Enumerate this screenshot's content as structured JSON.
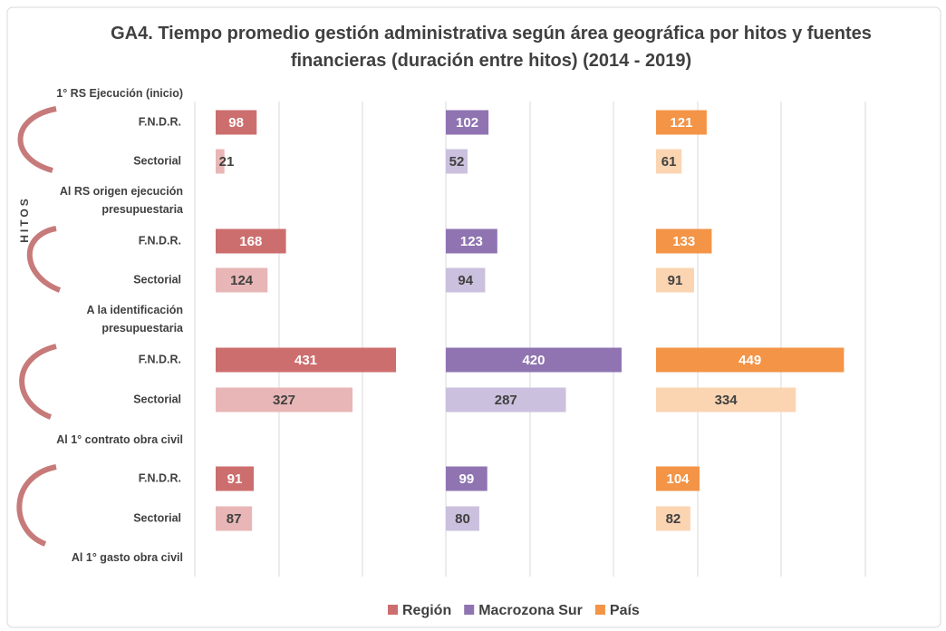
{
  "chart_data": {
    "type": "bar",
    "orientation": "horizontal",
    "title": "GA4. Tiempo promedio gestión administrativa según área geográfica por hitos y fuentes financieras  (duración entre hitos) (2014 - 2019)",
    "y_axis_label": "HITOS",
    "milestones": [
      "1° RS Ejecución (inicio)",
      "Al RS origen ejecución presupuestaria",
      "A la identificación presupuestaria",
      "Al 1° contrato obra civil",
      "Al 1° gasto obra civil"
    ],
    "categories": [
      "F.N.D.R.",
      "Sectorial",
      "F.N.D.R.",
      "Sectorial",
      "F.N.D.R.",
      "Sectorial",
      "F.N.D.R.",
      "Sectorial"
    ],
    "series": [
      {
        "name": "Región",
        "color": "#cd6e6e",
        "light_color": "#e8b6b6",
        "values": [
          98,
          21,
          168,
          124,
          431,
          327,
          91,
          87
        ]
      },
      {
        "name": "Macrozona Sur",
        "color": "#8f74b1",
        "light_color": "#cbc0dd",
        "values": [
          102,
          52,
          123,
          94,
          420,
          287,
          99,
          80
        ]
      },
      {
        "name": "País",
        "color": "#f39447",
        "light_color": "#fbd4b2",
        "values": [
          121,
          61,
          133,
          91,
          449,
          334,
          104,
          82
        ]
      }
    ],
    "xlim": [
      0,
      550
    ],
    "legend": "bottom",
    "grid": true
  }
}
